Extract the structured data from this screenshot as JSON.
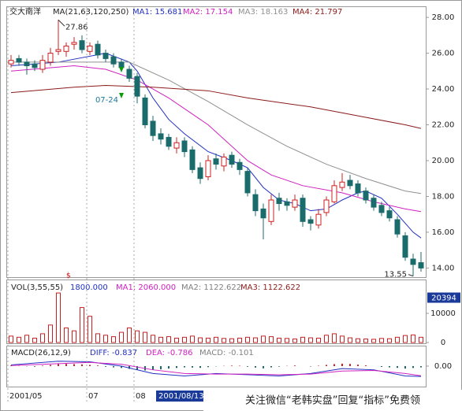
{
  "chart_data": [
    {
      "type": "candlestick",
      "title": "交大南洋",
      "subtitle": "MA(21,63,120,250)",
      "up_color": "#cc2020",
      "down_color": "#1a6b6b",
      "open": [
        25.4,
        25.7,
        25.5,
        25.4,
        25.1,
        25.5,
        26.1,
        26.1,
        26.5,
        26.7,
        26.1,
        26.5,
        26.0,
        25.8,
        25.5,
        25.1,
        24.7,
        23.5,
        22.2,
        21.5,
        21.3,
        20.7,
        21.1,
        20.6,
        19.6,
        19.1,
        20.1,
        19.7,
        20.3,
        19.9,
        19.4,
        18.1,
        17.3,
        16.6,
        17.9,
        17.7,
        17.4,
        17.9,
        16.7,
        16.4,
        17.1,
        17.7,
        18.5,
        18.9,
        18.7,
        18.3,
        17.9,
        17.5,
        17.2,
        16.7,
        15.8,
        14.5,
        14.3
      ],
      "high": [
        25.9,
        25.9,
        25.7,
        25.6,
        25.9,
        26.3,
        27.86,
        26.6,
        26.9,
        27.0,
        26.6,
        26.7,
        26.2,
        26.0,
        25.7,
        25.3,
        24.9,
        23.7,
        22.5,
        21.8,
        21.5,
        21.3,
        21.3,
        20.8,
        19.9,
        20.3,
        20.4,
        20.4,
        20.5,
        20.1,
        19.6,
        18.4,
        17.6,
        18.1,
        18.2,
        17.9,
        18.1,
        18.1,
        16.9,
        17.3,
        18.0,
        18.9,
        19.3,
        19.2,
        18.9,
        18.5,
        18.1,
        17.7,
        17.4,
        16.9,
        16.0,
        14.8,
        14.9
      ],
      "low": [
        25.2,
        25.3,
        24.8,
        25.0,
        24.9,
        25.3,
        25.9,
        25.8,
        26.2,
        26.0,
        25.9,
        25.7,
        25.5,
        25.2,
        25.0,
        24.4,
        23.2,
        21.8,
        21.1,
        20.9,
        20.6,
        20.4,
        20.2,
        19.3,
        18.7,
        18.9,
        19.5,
        19.4,
        19.6,
        19.2,
        18.0,
        16.9,
        15.6,
        16.4,
        17.2,
        17.2,
        17.2,
        16.3,
        16.1,
        16.2,
        16.9,
        17.6,
        18.3,
        18.4,
        18.0,
        17.6,
        17.2,
        16.9,
        16.6,
        15.7,
        14.4,
        13.55,
        13.8
      ],
      "close": [
        25.6,
        25.5,
        25.3,
        25.2,
        25.6,
        26.0,
        26.2,
        26.4,
        26.6,
        26.2,
        26.4,
        25.9,
        25.7,
        25.4,
        25.2,
        24.6,
        23.6,
        22.0,
        21.4,
        21.2,
        20.8,
        21.0,
        20.5,
        19.5,
        19.0,
        20.0,
        19.8,
        20.2,
        19.8,
        19.5,
        18.2,
        17.2,
        16.8,
        17.8,
        17.6,
        17.5,
        17.8,
        16.6,
        16.5,
        17.0,
        17.8,
        18.6,
        18.8,
        18.6,
        18.2,
        17.8,
        17.4,
        17.1,
        16.8,
        15.9,
        14.6,
        14.2,
        14.0
      ],
      "series": [
        {
          "name": "MA1: 15.681",
          "color": "#2030c0",
          "x": [
            0,
            6,
            12,
            15,
            16,
            18,
            20,
            22,
            25,
            28,
            30,
            32,
            34,
            36,
            38,
            40,
            42,
            44,
            45,
            47,
            49,
            51,
            52
          ],
          "values": [
            25.3,
            25.5,
            26.0,
            25.5,
            25.0,
            23.5,
            22.3,
            21.5,
            20.5,
            20.0,
            19.6,
            18.5,
            17.8,
            17.6,
            17.2,
            17.3,
            17.8,
            18.2,
            18.3,
            17.9,
            17.0,
            16.0,
            15.681
          ]
        },
        {
          "name": "MA2: 17.154",
          "color": "#d020c0",
          "x": [
            0,
            8,
            12,
            16,
            20,
            25,
            30,
            33,
            37,
            42,
            46,
            50,
            52
          ],
          "values": [
            25.0,
            25.3,
            25.1,
            24.5,
            23.5,
            22.0,
            20.0,
            19.2,
            18.6,
            18.2,
            17.7,
            17.3,
            17.154
          ]
        },
        {
          "name": "MA3: 18.163",
          "color": "#909090",
          "x": [
            0,
            15,
            20,
            25,
            30,
            35,
            40,
            45,
            50,
            52
          ],
          "values": [
            25.5,
            25.5,
            24.5,
            23.3,
            22.0,
            20.8,
            19.8,
            19.0,
            18.3,
            18.163
          ]
        },
        {
          "name": "MA4: 21.797",
          "color": "#8b1a1a",
          "x": [
            0,
            8,
            12,
            18,
            25,
            30,
            38,
            44,
            50,
            52
          ],
          "values": [
            23.8,
            24.1,
            24.2,
            24.1,
            23.9,
            23.5,
            23.0,
            22.5,
            22.0,
            21.797
          ]
        }
      ],
      "annotations": [
        {
          "label": "27.86",
          "x": 6,
          "y": 27.86
        },
        {
          "label": "07-24",
          "x": 14
        },
        {
          "label": "13.55",
          "x": 51,
          "y": 13.55
        }
      ],
      "ylim": [
        13.49,
        28.62
      ],
      "yticks": [
        {
          "value": 14,
          "label": "14.00"
        },
        {
          "value": 16,
          "label": "16.00"
        },
        {
          "value": 18,
          "label": "18.00"
        },
        {
          "value": 20,
          "label": "20.00"
        },
        {
          "value": 22,
          "label": "22.00"
        },
        {
          "value": 24,
          "label": "24.00"
        },
        {
          "value": 26,
          "label": "26.00"
        },
        {
          "value": 28,
          "label": "28.00"
        }
      ]
    },
    {
      "type": "bar",
      "title": "VOL(3,55,55)",
      "color": "#cc2020",
      "header": [
        {
          "text": "1800.000",
          "color": "#2030c0"
        },
        {
          "text": "MA1: 2060.000",
          "color": "#d020c0"
        },
        {
          "text": "MA2: 1122.622",
          "color": "#808080"
        },
        {
          "text": "MA3: 1122.622",
          "color": "#8b1a1a"
        }
      ],
      "values": [
        2200,
        1800,
        2500,
        1500,
        3000,
        6000,
        17000,
        5000,
        4000,
        12000,
        9000,
        3000,
        2500,
        2000,
        3500,
        5000,
        4000,
        3500,
        2500,
        1800,
        2000,
        1500,
        1800,
        2200,
        1600,
        1500,
        1800,
        1400,
        1300,
        1500,
        1800,
        1600,
        2200,
        2000,
        1500,
        1400,
        1200,
        1800,
        1600,
        1500,
        2500,
        3000,
        2200,
        1600,
        1300,
        1200,
        1100,
        1400,
        1300,
        1800,
        2400,
        2600,
        1800
      ],
      "marker_value": 20394,
      "ylim": [
        0,
        21350
      ],
      "yticks": [
        0,
        10000
      ]
    },
    {
      "type": "macd",
      "title": "MACD(26,12,9)",
      "color": "#cc2020",
      "header": [
        {
          "text": "DIFF: -0.837",
          "color": "#2030c0"
        },
        {
          "text": "DEA: -0.786",
          "color": "#d020c0"
        },
        {
          "text": "MACD: -0.101",
          "color": "#808080"
        }
      ],
      "values": [
        0.05,
        0.02,
        -0.02,
        -0.05,
        0.04,
        0.1,
        0.2,
        0.18,
        0.16,
        0.14,
        0.1,
        0.05,
        -0.05,
        -0.1,
        -0.15,
        -0.22,
        -0.3,
        -0.35,
        -0.32,
        -0.26,
        -0.2,
        -0.15,
        -0.1,
        -0.12,
        -0.14,
        -0.08,
        -0.02,
        0.02,
        0.04,
        0.03,
        -0.05,
        -0.12,
        -0.18,
        -0.1,
        -0.04,
        0.02,
        0.05,
        0.0,
        -0.03,
        0.03,
        0.1,
        0.16,
        0.2,
        0.18,
        0.12,
        0.06,
        0.0,
        -0.06,
        -0.1,
        -0.14,
        -0.2,
        -0.15,
        -0.101
      ],
      "series": [
        {
          "name": "DIFF",
          "color": "#2030c0",
          "x": [
            0,
            6,
            10,
            14,
            18,
            22,
            26,
            30,
            34,
            38,
            42,
            46,
            50,
            52
          ],
          "values": [
            0.1,
            0.4,
            0.35,
            0.0,
            -0.6,
            -0.8,
            -0.6,
            -0.7,
            -0.8,
            -0.6,
            -0.2,
            -0.3,
            -0.8,
            -0.837
          ]
        },
        {
          "name": "DEA",
          "color": "#d020c0",
          "x": [
            0,
            6,
            10,
            14,
            18,
            22,
            26,
            30,
            34,
            38,
            42,
            46,
            50,
            52
          ],
          "values": [
            0.05,
            0.2,
            0.3,
            0.15,
            -0.3,
            -0.6,
            -0.65,
            -0.65,
            -0.7,
            -0.65,
            -0.4,
            -0.35,
            -0.6,
            -0.786
          ]
        }
      ],
      "categories": [
        "2001/05",
        null,
        null,
        null,
        null,
        null,
        null,
        null,
        null,
        null,
        "07",
        null,
        null,
        null,
        null,
        null,
        "08",
        null,
        null,
        null,
        null,
        null,
        null,
        null,
        null,
        null,
        null,
        null,
        null,
        null,
        null,
        null,
        null,
        null,
        null,
        null,
        null,
        null,
        null,
        null,
        null,
        null,
        null,
        null,
        null,
        null,
        null,
        null,
        null,
        null,
        null,
        null,
        null
      ],
      "cursor_label": "2001/08/13",
      "cursor_index": 19,
      "ylim": [
        -1.6,
        1.6
      ],
      "yticks": [
        {
          "value": 0,
          "label": "0.00"
        }
      ]
    }
  ],
  "watermark": "关注微信“老韩实盘”回复“指标”免费领"
}
